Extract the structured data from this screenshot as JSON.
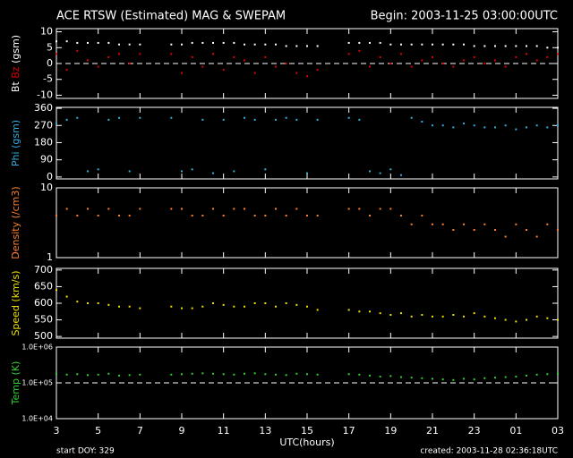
{
  "title": "ACE RTSW (Estimated) MAG & SWEPAM",
  "begin": "Begin: 2003-11-25 03:00:00UTC",
  "footer_left": "start DOY: 329",
  "footer_right": "created: 2003-11-28 02:36:18UTC",
  "chart_data": [
    {
      "type": "scatter",
      "ylabel": "(gsm)",
      "ylim": [
        -11,
        11
      ],
      "yticks": [
        -10,
        -5,
        0,
        5,
        10
      ],
      "hline": 0,
      "xlim": [
        3,
        27
      ],
      "xticks": [
        3,
        5,
        7,
        9,
        11,
        13,
        15,
        17,
        19,
        21,
        23,
        {
          "value": 25,
          "label": "01"
        },
        {
          "value": 27,
          "label": "03"
        }
      ],
      "x": [
        3,
        3.5,
        4,
        4.5,
        5,
        5.5,
        6,
        6.5,
        7,
        8.5,
        9,
        9.5,
        10,
        10.5,
        11,
        11.5,
        12,
        12.5,
        13,
        13.5,
        14,
        14.5,
        15,
        15.5,
        17,
        17.5,
        18,
        18.5,
        19,
        19.5,
        20,
        20.5,
        21,
        21.5,
        22,
        22.5,
        23,
        23.5,
        24,
        24.5,
        25,
        25.5,
        26,
        26.5,
        27
      ],
      "series": [
        {
          "name": "Bt",
          "color": "#ffffff",
          "values": [
            7,
            7,
            6.5,
            6.5,
            6.5,
            6.5,
            6,
            6,
            6,
            6,
            6,
            6.5,
            6.5,
            6.5,
            6.5,
            6.5,
            6,
            6,
            6,
            6,
            5.5,
            5.5,
            5.5,
            5.5,
            6.5,
            6.5,
            6.5,
            6.5,
            6,
            6,
            6,
            6,
            6,
            6,
            6,
            6,
            5.5,
            5.5,
            5.5,
            5.5,
            5.5,
            5.5,
            5.5,
            5,
            5
          ]
        },
        {
          "name": "Bz",
          "color": "#e00000",
          "values": [
            3,
            -2,
            4,
            1,
            -1,
            2,
            3,
            0,
            3,
            3,
            -3,
            2,
            -1,
            3,
            -2,
            2,
            1,
            -3,
            2,
            -1,
            0,
            -3,
            -4,
            -2,
            3,
            4,
            -1,
            2,
            0,
            3,
            -1,
            1,
            2,
            0,
            -1,
            1,
            2,
            0,
            1,
            -1,
            2,
            3,
            1,
            2,
            3
          ]
        }
      ]
    },
    {
      "type": "scatter",
      "ylabel": "(gsm)",
      "ylim": [
        -10,
        365
      ],
      "yticks": [
        0,
        90,
        180,
        270,
        360
      ],
      "xlim": [
        3,
        27
      ],
      "xticks": [
        3,
        5,
        7,
        9,
        11,
        13,
        15,
        17,
        19,
        21,
        23,
        {
          "value": 25,
          "label": "01"
        },
        {
          "value": 27,
          "label": "03"
        }
      ],
      "x": [
        3,
        3.5,
        4,
        4.5,
        5,
        5.5,
        6,
        6.5,
        7,
        8.5,
        9,
        9.5,
        10,
        10.5,
        11,
        11.5,
        12,
        12.5,
        13,
        13.5,
        14,
        14.5,
        15,
        15.5,
        17,
        17.5,
        18,
        18.5,
        19,
        19.5,
        20,
        20.5,
        21,
        21.5,
        22,
        22.5,
        23,
        23.5,
        24,
        24.5,
        25,
        25.5,
        26,
        26.5,
        27
      ],
      "series": [
        {
          "name": "Phi",
          "color": "#30b0e0",
          "values": [
            280,
            300,
            310,
            30,
            40,
            300,
            310,
            30,
            310,
            310,
            30,
            40,
            300,
            20,
            300,
            30,
            310,
            300,
            40,
            300,
            310,
            300,
            20,
            300,
            310,
            300,
            30,
            20,
            40,
            10,
            310,
            290,
            270,
            270,
            260,
            280,
            270,
            260,
            260,
            270,
            250,
            260,
            270,
            260,
            270
          ]
        }
      ]
    },
    {
      "type": "scatter",
      "ylabel": "(/cm3)",
      "yscale": "log",
      "ylim": [
        1,
        10
      ],
      "yticks": [
        1,
        10
      ],
      "xlim": [
        3,
        27
      ],
      "xticks": [
        3,
        5,
        7,
        9,
        11,
        13,
        15,
        17,
        19,
        21,
        23,
        {
          "value": 25,
          "label": "01"
        },
        {
          "value": 27,
          "label": "03"
        }
      ],
      "x": [
        3,
        3.5,
        4,
        4.5,
        5,
        5.5,
        6,
        6.5,
        7,
        8.5,
        9,
        9.5,
        10,
        10.5,
        11,
        11.5,
        12,
        12.5,
        13,
        13.5,
        14,
        14.5,
        15,
        15.5,
        17,
        17.5,
        18,
        18.5,
        19,
        19.5,
        20,
        20.5,
        21,
        21.5,
        22,
        22.5,
        23,
        23.5,
        24,
        24.5,
        25,
        25.5,
        26,
        26.5,
        27
      ],
      "series": [
        {
          "name": "Density",
          "color": "#ff8030",
          "values": [
            4,
            5,
            4,
            5,
            4,
            5,
            4,
            4,
            5,
            5,
            5,
            4,
            4,
            5,
            4,
            5,
            5,
            4,
            4,
            5,
            4,
            5,
            4,
            4,
            5,
            5,
            4,
            5,
            5,
            4,
            3,
            4,
            3,
            3,
            2.5,
            3,
            2.5,
            3,
            2.5,
            2,
            3,
            2.5,
            2,
            3,
            2.5
          ]
        }
      ]
    },
    {
      "type": "scatter",
      "ylabel": "(km/s)",
      "ylim": [
        495,
        705
      ],
      "yticks": [
        500,
        550,
        600,
        650,
        700
      ],
      "xlim": [
        3,
        27
      ],
      "xticks": [
        3,
        5,
        7,
        9,
        11,
        13,
        15,
        17,
        19,
        21,
        23,
        {
          "value": 25,
          "label": "01"
        },
        {
          "value": 27,
          "label": "03"
        }
      ],
      "x": [
        3,
        3.5,
        4,
        4.5,
        5,
        5.5,
        6,
        6.5,
        7,
        8.5,
        9,
        9.5,
        10,
        10.5,
        11,
        11.5,
        12,
        12.5,
        13,
        13.5,
        14,
        14.5,
        15,
        15.5,
        17,
        17.5,
        18,
        18.5,
        19,
        19.5,
        20,
        20.5,
        21,
        21.5,
        22,
        22.5,
        23,
        23.5,
        24,
        24.5,
        25,
        25.5,
        26,
        26.5,
        27
      ],
      "series": [
        {
          "name": "Speed",
          "color": "#f0e000",
          "values": [
            640,
            620,
            605,
            600,
            600,
            595,
            590,
            590,
            585,
            590,
            585,
            585,
            590,
            600,
            595,
            590,
            590,
            600,
            600,
            590,
            600,
            595,
            590,
            580,
            580,
            575,
            575,
            570,
            565,
            570,
            560,
            565,
            560,
            560,
            565,
            560,
            570,
            560,
            555,
            550,
            545,
            550,
            560,
            555,
            550
          ]
        }
      ]
    },
    {
      "type": "scatter",
      "ylabel": "(K)",
      "yscale": "log",
      "ylim": [
        10000,
        1000000
      ],
      "hline": 100000,
      "yticks": [
        {
          "value": 10000,
          "label": "1.0E+04"
        },
        {
          "value": 100000,
          "label": "1.0E+05"
        },
        {
          "value": 1000000,
          "label": "1.0E+06"
        }
      ],
      "xlabel": "UTC(hours)",
      "xlim": [
        3,
        27
      ],
      "xticks": [
        3,
        5,
        7,
        9,
        11,
        13,
        15,
        17,
        19,
        21,
        23,
        {
          "value": 25,
          "label": "01"
        },
        {
          "value": 27,
          "label": "03"
        }
      ],
      "x": [
        3,
        3.5,
        4,
        4.5,
        5,
        5.5,
        6,
        6.5,
        7,
        8.5,
        9,
        9.5,
        10,
        10.5,
        11,
        11.5,
        12,
        12.5,
        13,
        13.5,
        14,
        14.5,
        15,
        15.5,
        17,
        17.5,
        18,
        18.5,
        19,
        19.5,
        20,
        20.5,
        21,
        21.5,
        22,
        22.5,
        23,
        23.5,
        24,
        24.5,
        25,
        25.5,
        26,
        26.5,
        27
      ],
      "series": [
        {
          "name": "Temp",
          "color": "#30d030",
          "values": [
            180000,
            170000,
            175000,
            165000,
            170000,
            180000,
            160000,
            165000,
            170000,
            170000,
            175000,
            180000,
            185000,
            180000,
            175000,
            170000,
            180000,
            185000,
            175000,
            170000,
            165000,
            180000,
            175000,
            170000,
            175000,
            170000,
            160000,
            150000,
            155000,
            145000,
            140000,
            135000,
            130000,
            125000,
            120000,
            130000,
            125000,
            135000,
            140000,
            145000,
            150000,
            160000,
            170000,
            175000,
            180000
          ]
        }
      ]
    }
  ]
}
